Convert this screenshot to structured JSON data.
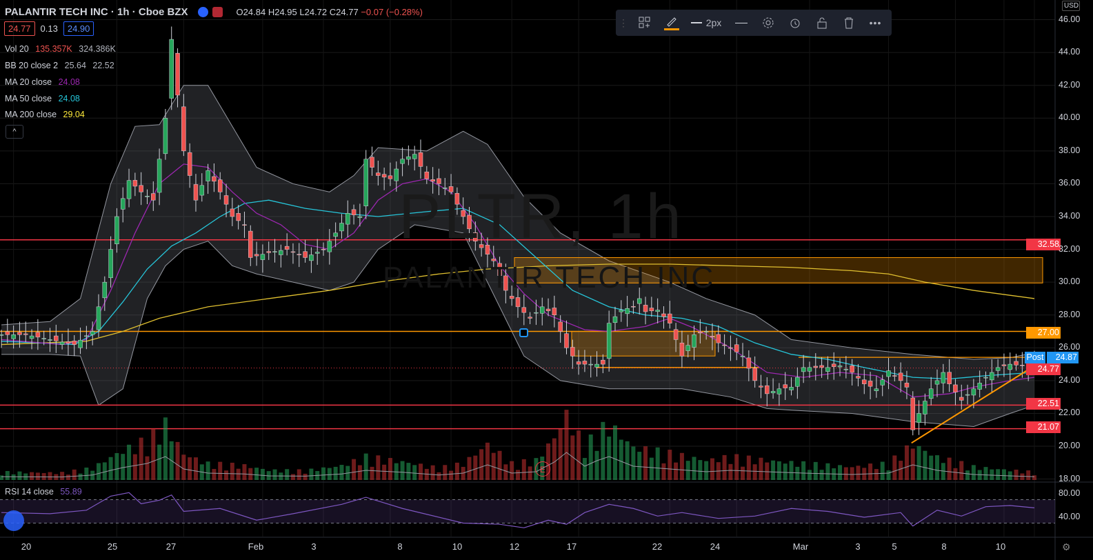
{
  "header": {
    "symbol": "PALANTIR TECH INC · 1h · Cboe BZX",
    "open": "O24.84",
    "high": "H24.95",
    "low": "L24.72",
    "close": "C24.77",
    "change": "−0.07 (−0.28%)"
  },
  "quote": {
    "bid": "24.77",
    "spread": "0.13",
    "ask": "24.90"
  },
  "indicators": {
    "vol": {
      "label": "Vol 20",
      "v1": "135.357K",
      "v2": "324.386K",
      "c1": "#ef5350",
      "c2": "#b2b5be"
    },
    "bb": {
      "label": "BB 20 close 2",
      "v1": "25.64",
      "v2": "22.52",
      "c1": "#b2b5be",
      "c2": "#b2b5be"
    },
    "ma20": {
      "label": "MA 20 close",
      "value": "24.08",
      "color": "#9c27b0"
    },
    "ma50": {
      "label": "MA 50 close",
      "value": "24.08",
      "color": "#26c6da"
    },
    "ma200": {
      "label": "MA 200 close",
      "value": "29.04",
      "color": "#ffeb3b"
    },
    "rsi": {
      "label": "RSI 14 close",
      "value": "55.89",
      "color": "#7e57c2"
    }
  },
  "toolbar": {
    "width_label": "2px"
  },
  "watermark": {
    "ticker": "PLTR, 1h",
    "name": "PALANTIR TECH INC"
  },
  "currency": "USD",
  "earnings_marker": "E",
  "price_labels": {
    "r1": "32.58",
    "l27": "27.00",
    "post_tag": "Post",
    "post": "24.87",
    "last": "24.77",
    "s1": "22.51",
    "s2": "21.07"
  },
  "chart_data": {
    "type": "candlestick",
    "title": "PALANTIR TECH INC · 1h · Cboe BZX",
    "y_axis_ticks": [
      46,
      44,
      42,
      40,
      38,
      36,
      34,
      32,
      30,
      28,
      26,
      24,
      22,
      20,
      18
    ],
    "ylim": [
      17.9,
      47.2
    ],
    "x_ticks": [
      "20",
      "25",
      "27",
      "Feb",
      "3",
      "8",
      "10",
      "12",
      "17",
      "22",
      "24",
      "Mar",
      "3",
      "5",
      "8",
      "10"
    ],
    "price_path": [
      [
        0,
        26.8
      ],
      [
        4,
        26.8
      ],
      [
        8,
        26.5
      ],
      [
        12,
        26.2
      ],
      [
        15,
        27.0
      ],
      [
        17,
        30.0
      ],
      [
        19,
        34.0
      ],
      [
        21,
        36.2
      ],
      [
        23,
        35.5
      ],
      [
        25,
        35.0
      ],
      [
        27,
        40.0
      ],
      [
        28,
        44.8
      ],
      [
        30,
        38.0
      ],
      [
        32,
        35.0
      ],
      [
        34,
        36.8
      ],
      [
        36,
        35.5
      ],
      [
        38,
        34.0
      ],
      [
        40,
        33.5
      ],
      [
        41,
        31.5
      ],
      [
        44,
        31.8
      ],
      [
        47,
        32.0
      ],
      [
        50,
        31.5
      ],
      [
        53,
        32.0
      ],
      [
        55,
        33.0
      ],
      [
        57,
        34.2
      ],
      [
        59,
        34.0
      ],
      [
        60,
        37.5
      ],
      [
        62,
        36.5
      ],
      [
        64,
        36.3
      ],
      [
        66,
        37.5
      ],
      [
        68,
        37.8
      ],
      [
        70,
        36.3
      ],
      [
        72,
        36.0
      ],
      [
        74,
        35.5
      ],
      [
        76,
        34.0
      ],
      [
        78,
        32.5
      ],
      [
        80,
        31.7
      ],
      [
        81,
        31.3
      ],
      [
        83,
        29.5
      ],
      [
        85,
        28.5
      ],
      [
        87,
        27.8
      ],
      [
        89,
        28.5
      ],
      [
        91,
        28.0
      ],
      [
        93,
        26.0
      ],
      [
        95,
        25.0
      ],
      [
        97,
        25.0
      ],
      [
        99,
        25.0
      ],
      [
        100,
        27.5
      ],
      [
        102,
        28.3
      ],
      [
        104,
        28.5
      ],
      [
        105,
        29.0
      ],
      [
        106,
        28.2
      ],
      [
        108,
        28.3
      ],
      [
        110,
        27.5
      ],
      [
        112,
        25.5
      ],
      [
        114,
        26.8
      ],
      [
        116,
        27.0
      ],
      [
        118,
        26.3
      ],
      [
        120,
        26.0
      ],
      [
        122,
        25.5
      ],
      [
        124,
        24.0
      ],
      [
        126,
        23.2
      ],
      [
        128,
        23.5
      ],
      [
        130,
        23.6
      ],
      [
        132,
        24.8
      ],
      [
        134,
        24.8
      ],
      [
        136,
        24.8
      ],
      [
        138,
        24.9
      ],
      [
        140,
        24.5
      ],
      [
        142,
        23.8
      ],
      [
        144,
        23.5
      ],
      [
        146,
        24.6
      ],
      [
        148,
        24.0
      ],
      [
        149,
        23.6
      ],
      [
        150,
        21.0
      ],
      [
        151,
        22.0
      ],
      [
        153,
        23.5
      ],
      [
        155,
        24.5
      ],
      [
        156,
        23.8
      ],
      [
        158,
        22.8
      ],
      [
        160,
        23.5
      ],
      [
        162,
        24.2
      ],
      [
        164,
        24.8
      ],
      [
        166,
        25.0
      ],
      [
        168,
        24.9
      ],
      [
        170,
        24.77
      ]
    ],
    "bollinger_upper_path": [
      [
        0,
        27.4
      ],
      [
        8,
        27.6
      ],
      [
        13,
        29.0
      ],
      [
        18,
        36.0
      ],
      [
        22,
        39.5
      ],
      [
        26,
        39.6
      ],
      [
        30,
        42.0
      ],
      [
        34,
        42.0
      ],
      [
        38,
        39.5
      ],
      [
        42,
        37.0
      ],
      [
        48,
        36.0
      ],
      [
        54,
        35.5
      ],
      [
        58,
        36.5
      ],
      [
        62,
        38.2
      ],
      [
        70,
        38.0
      ],
      [
        76,
        39.2
      ],
      [
        80,
        38.4
      ],
      [
        86,
        35.2
      ],
      [
        92,
        33.0
      ],
      [
        100,
        31.3
      ],
      [
        110,
        30.0
      ],
      [
        116,
        29.0
      ],
      [
        124,
        28.0
      ],
      [
        130,
        26.5
      ],
      [
        140,
        26.0
      ],
      [
        150,
        25.6
      ],
      [
        160,
        25.3
      ],
      [
        166,
        25.4
      ],
      [
        170,
        25.7
      ]
    ],
    "bollinger_lower_path": [
      [
        0,
        25.6
      ],
      [
        8,
        25.6
      ],
      [
        13,
        25.5
      ],
      [
        16,
        22.5
      ],
      [
        20,
        23.5
      ],
      [
        24,
        29.0
      ],
      [
        27,
        31.0
      ],
      [
        30,
        32.0
      ],
      [
        34,
        32.5
      ],
      [
        38,
        31.0
      ],
      [
        42,
        30.5
      ],
      [
        48,
        30.0
      ],
      [
        54,
        29.5
      ],
      [
        58,
        30.0
      ],
      [
        62,
        32.0
      ],
      [
        68,
        33.5
      ],
      [
        76,
        33.0
      ],
      [
        82,
        28.5
      ],
      [
        86,
        25.5
      ],
      [
        92,
        24.0
      ],
      [
        100,
        23.5
      ],
      [
        106,
        23.5
      ],
      [
        112,
        23.5
      ],
      [
        120,
        23.0
      ],
      [
        126,
        22.3
      ],
      [
        130,
        22.2
      ],
      [
        140,
        22.0
      ],
      [
        150,
        21.5
      ],
      [
        160,
        21.2
      ],
      [
        166,
        22.0
      ],
      [
        170,
        22.5
      ]
    ],
    "ma20_path": [
      [
        0,
        26.5
      ],
      [
        10,
        26.2
      ],
      [
        14,
        26.5
      ],
      [
        18,
        29.5
      ],
      [
        22,
        33.0
      ],
      [
        26,
        36.0
      ],
      [
        30,
        37.2
      ],
      [
        34,
        37.0
      ],
      [
        38,
        35.5
      ],
      [
        42,
        34.2
      ],
      [
        46,
        33.5
      ],
      [
        50,
        32.3
      ],
      [
        54,
        32.0
      ],
      [
        58,
        33.0
      ],
      [
        62,
        35.0
      ],
      [
        66,
        36.0
      ],
      [
        70,
        36.3
      ],
      [
        74,
        35.5
      ],
      [
        78,
        33.5
      ],
      [
        82,
        31.0
      ],
      [
        86,
        29.3
      ],
      [
        90,
        28.0
      ],
      [
        96,
        27.1
      ],
      [
        100,
        27.0
      ],
      [
        106,
        27.3
      ],
      [
        110,
        27.8
      ],
      [
        114,
        27.2
      ],
      [
        120,
        26.0
      ],
      [
        126,
        24.5
      ],
      [
        132,
        24.2
      ],
      [
        138,
        24.5
      ],
      [
        144,
        24.3
      ],
      [
        150,
        23.0
      ],
      [
        156,
        23.2
      ],
      [
        160,
        23.6
      ],
      [
        166,
        24.0
      ],
      [
        170,
        24.2
      ]
    ],
    "ma50_path": [
      [
        0,
        26.4
      ],
      [
        12,
        26.2
      ],
      [
        16,
        27.0
      ],
      [
        20,
        28.8
      ],
      [
        24,
        30.8
      ],
      [
        28,
        32.2
      ],
      [
        32,
        33.0
      ],
      [
        36,
        34.0
      ],
      [
        40,
        34.8
      ],
      [
        44,
        35.0
      ],
      [
        50,
        34.5
      ],
      [
        56,
        34.2
      ],
      [
        62,
        34.0
      ],
      [
        70,
        34.3
      ],
      [
        76,
        34.5
      ],
      [
        82,
        33.5
      ],
      [
        88,
        31.5
      ],
      [
        94,
        29.5
      ],
      [
        100,
        28.5
      ],
      [
        106,
        28.0
      ],
      [
        112,
        27.8
      ],
      [
        118,
        27.3
      ],
      [
        124,
        26.3
      ],
      [
        130,
        25.6
      ],
      [
        136,
        25.3
      ],
      [
        142,
        24.8
      ],
      [
        150,
        24.2
      ],
      [
        156,
        24.1
      ],
      [
        162,
        24.3
      ],
      [
        170,
        24.5
      ]
    ],
    "ma200_path": [
      [
        0,
        26.2
      ],
      [
        14,
        26.4
      ],
      [
        20,
        27.0
      ],
      [
        26,
        27.8
      ],
      [
        34,
        28.5
      ],
      [
        44,
        29.0
      ],
      [
        54,
        29.5
      ],
      [
        62,
        30.0
      ],
      [
        72,
        30.5
      ],
      [
        80,
        30.8
      ],
      [
        90,
        31.0
      ],
      [
        100,
        31.1
      ],
      [
        110,
        31.1
      ],
      [
        120,
        31.0
      ],
      [
        130,
        30.9
      ],
      [
        140,
        30.7
      ],
      [
        146,
        30.5
      ],
      [
        152,
        30.0
      ],
      [
        160,
        29.5
      ],
      [
        166,
        29.2
      ],
      [
        170,
        29.0
      ]
    ],
    "horizontal_levels": [
      32.58,
      27.0,
      22.51,
      21.07
    ],
    "support_line_levels": [
      25.0,
      24.8
    ],
    "zones": [
      [
        29.95,
        31.5
      ],
      [
        25.5,
        27.0
      ]
    ],
    "trendline": [
      [
        150,
        20.2
      ],
      [
        170,
        24.9
      ]
    ],
    "volume_path": [
      [
        0,
        0.12
      ],
      [
        10,
        0.11
      ],
      [
        15,
        0.18
      ],
      [
        18,
        0.35
      ],
      [
        20,
        0.45
      ],
      [
        24,
        0.6
      ],
      [
        27,
        0.85
      ],
      [
        30,
        0.4
      ],
      [
        34,
        0.25
      ],
      [
        40,
        0.22
      ],
      [
        44,
        0.15
      ],
      [
        50,
        0.14
      ],
      [
        56,
        0.22
      ],
      [
        60,
        0.35
      ],
      [
        66,
        0.28
      ],
      [
        72,
        0.18
      ],
      [
        76,
        0.25
      ],
      [
        80,
        0.55
      ],
      [
        84,
        0.25
      ],
      [
        88,
        0.3
      ],
      [
        91,
        0.65
      ],
      [
        93,
        1.0
      ],
      [
        96,
        0.5
      ],
      [
        98,
        0.7
      ],
      [
        100,
        0.85
      ],
      [
        104,
        0.5
      ],
      [
        110,
        0.4
      ],
      [
        116,
        0.3
      ],
      [
        120,
        0.35
      ],
      [
        126,
        0.3
      ],
      [
        132,
        0.25
      ],
      [
        140,
        0.2
      ],
      [
        146,
        0.25
      ],
      [
        150,
        0.55
      ],
      [
        154,
        0.35
      ],
      [
        160,
        0.2
      ],
      [
        166,
        0.15
      ],
      [
        170,
        0.12
      ]
    ],
    "rsi": {
      "levels": [
        70,
        30
      ],
      "ticks": [
        80,
        40
      ],
      "path": [
        [
          0,
          48
        ],
        [
          8,
          46
        ],
        [
          14,
          52
        ],
        [
          18,
          76
        ],
        [
          21,
          82
        ],
        [
          23,
          63
        ],
        [
          26,
          69
        ],
        [
          28,
          78
        ],
        [
          30,
          50
        ],
        [
          36,
          55
        ],
        [
          42,
          35
        ],
        [
          48,
          46
        ],
        [
          56,
          62
        ],
        [
          60,
          74
        ],
        [
          66,
          55
        ],
        [
          70,
          45
        ],
        [
          76,
          30
        ],
        [
          82,
          28
        ],
        [
          86,
          22
        ],
        [
          90,
          35
        ],
        [
          93,
          28
        ],
        [
          96,
          48
        ],
        [
          100,
          62
        ],
        [
          104,
          55
        ],
        [
          108,
          42
        ],
        [
          112,
          48
        ],
        [
          118,
          38
        ],
        [
          124,
          42
        ],
        [
          130,
          55
        ],
        [
          136,
          50
        ],
        [
          142,
          40
        ],
        [
          148,
          48
        ],
        [
          150,
          25
        ],
        [
          154,
          52
        ],
        [
          158,
          42
        ],
        [
          162,
          58
        ],
        [
          166,
          60
        ],
        [
          170,
          56
        ]
      ]
    }
  }
}
